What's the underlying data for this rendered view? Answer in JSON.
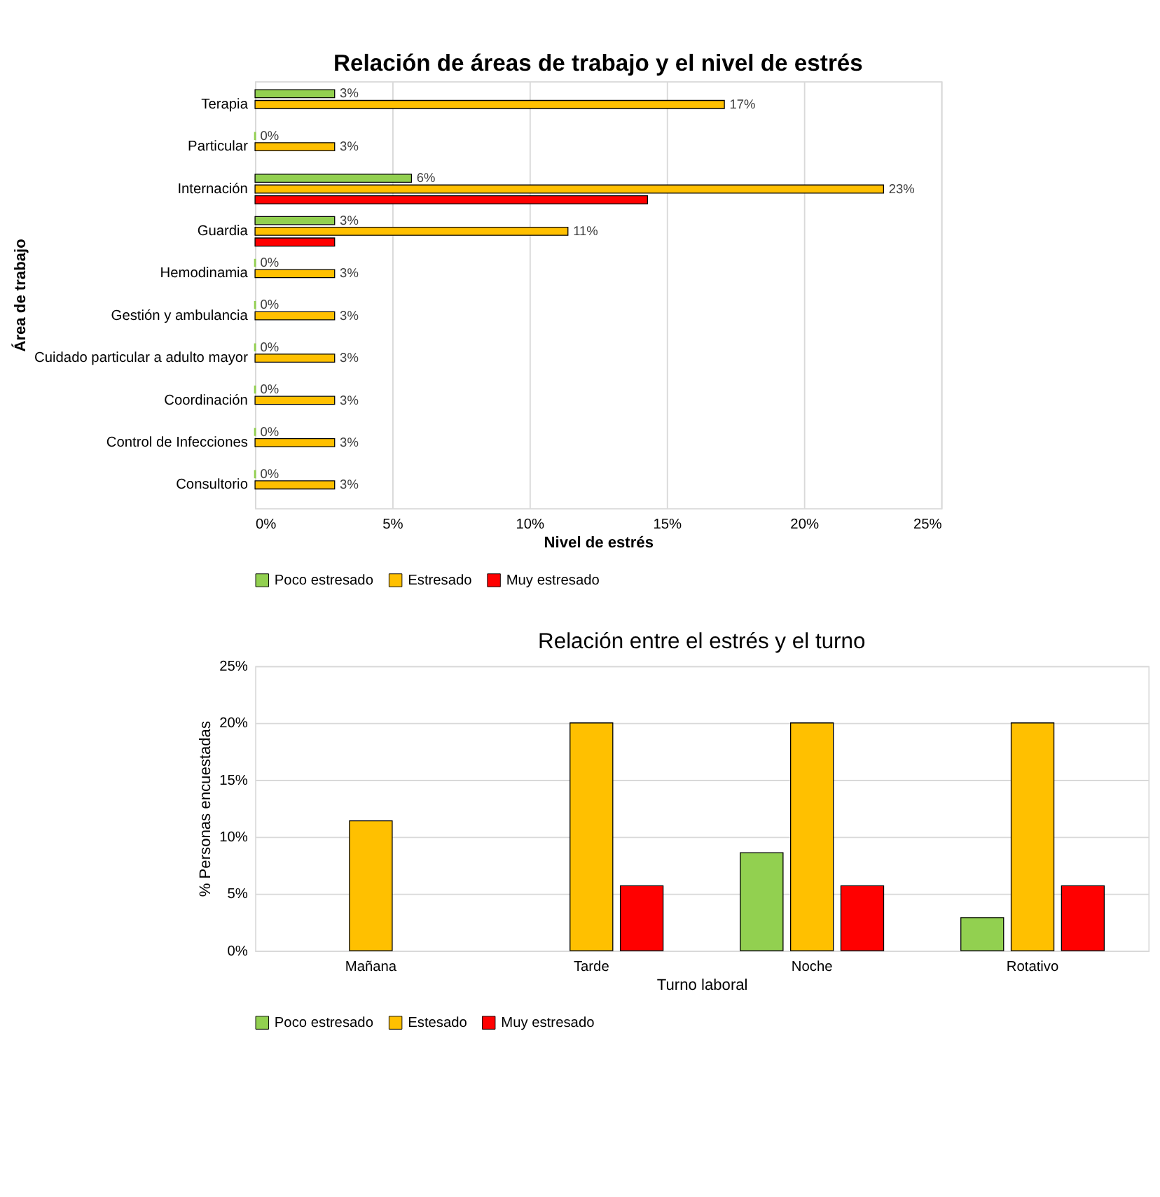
{
  "chart_data": [
    {
      "type": "bar",
      "orientation": "horizontal",
      "title": "Relación de áreas de trabajo y el nivel de estrés",
      "xlabel": "Nivel de estrés",
      "ylabel": "Área de trabajo",
      "categories": [
        "Terapia",
        "Particular",
        "Internación",
        "Guardia",
        "Hemodinamia",
        "Gestión y ambulancia",
        "Cuidado particular a adulto mayor",
        "Coordinación",
        "Control de Infecciones",
        "Consultorio"
      ],
      "series": [
        {
          "name": "Poco estresado",
          "color": "#92d050",
          "values": [
            2.9,
            0,
            5.7,
            2.9,
            0,
            0,
            0,
            0,
            0,
            0
          ],
          "value_labels": [
            "3%",
            "0%",
            "6%",
            "3%",
            "0%",
            "0%",
            "0%",
            "0%",
            "0%",
            "0%"
          ]
        },
        {
          "name": "Estresado",
          "color": "#ffc000",
          "values": [
            17.1,
            2.9,
            22.9,
            11.4,
            2.9,
            2.9,
            2.9,
            2.9,
            2.9,
            2.9
          ],
          "value_labels": [
            "17%",
            "3%",
            "23%",
            "11%",
            "3%",
            "3%",
            "3%",
            "3%",
            "3%",
            "3%"
          ]
        },
        {
          "name": "Muy estresado",
          "color": "#ff0000",
          "values": [
            null,
            null,
            14.3,
            2.9,
            null,
            null,
            null,
            null,
            null,
            null
          ]
        }
      ],
      "xlim": [
        0,
        25
      ],
      "xticks": [
        {
          "value": 0,
          "label": "0%"
        },
        {
          "value": 5,
          "label": "5%"
        },
        {
          "value": 10,
          "label": "10%"
        },
        {
          "value": 15,
          "label": "15%"
        },
        {
          "value": 20,
          "label": "20%"
        },
        {
          "value": 25,
          "label": "25%"
        }
      ],
      "grid": "x",
      "legend": "bottom"
    },
    {
      "type": "bar",
      "title": "Relación entre el estrés y el turno",
      "xlabel": "Turno laboral",
      "ylabel": "% Personas encuestadas",
      "categories": [
        "Mañana",
        "Tarde",
        "Noche",
        "Rotativo"
      ],
      "series": [
        {
          "name": "Poco estresado",
          "color": "#92d050",
          "values": [
            null,
            null,
            8.6,
            2.9
          ]
        },
        {
          "name": "Estesado",
          "color": "#ffc000",
          "values": [
            11.4,
            20,
            20,
            20
          ]
        },
        {
          "name": "Muy estresado",
          "color": "#ff0000",
          "values": [
            null,
            5.7,
            5.7,
            5.7
          ]
        }
      ],
      "ylim": [
        0,
        25
      ],
      "yticks": [
        {
          "value": 0,
          "label": "0%"
        },
        {
          "value": 5,
          "label": "5%"
        },
        {
          "value": 10,
          "label": "10%"
        },
        {
          "value": 15,
          "label": "15%"
        },
        {
          "value": 20,
          "label": "20%"
        },
        {
          "value": 25,
          "label": "25%"
        }
      ],
      "grid": "y",
      "legend": "bottom"
    }
  ]
}
